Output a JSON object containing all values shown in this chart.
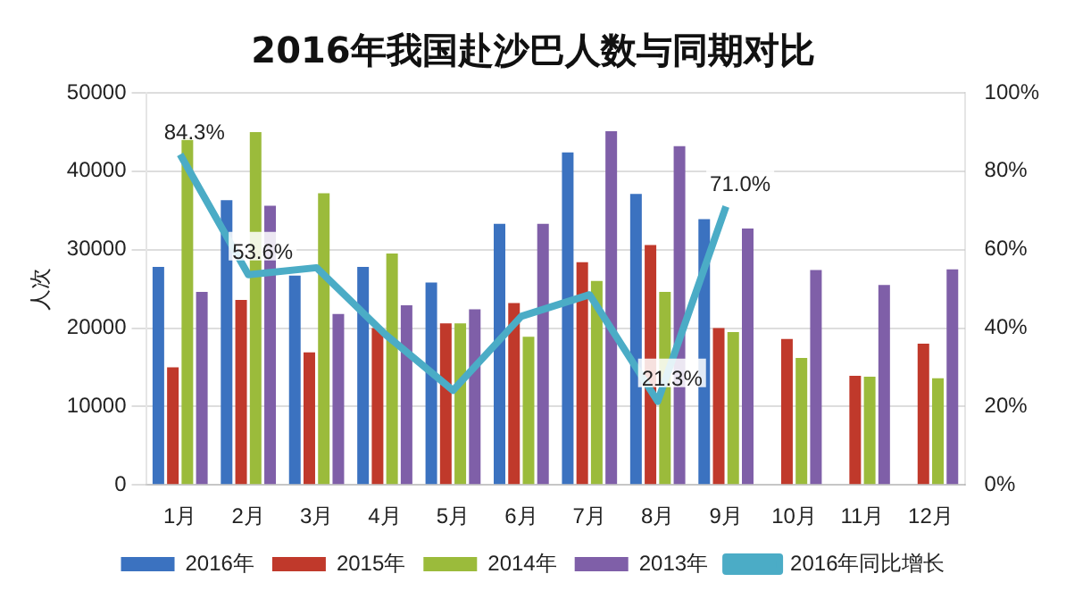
{
  "chart_data": {
    "type": "bar",
    "title": "2016年我国赴沙巴人数与同期对比",
    "ylabel": "人次",
    "categories": [
      "1月",
      "2月",
      "3月",
      "4月",
      "5月",
      "6月",
      "7月",
      "8月",
      "9月",
      "10月",
      "11月",
      "12月"
    ],
    "series": [
      {
        "name": "2016年",
        "color": "#3b72c0",
        "values": [
          27800,
          36300,
          26700,
          27800,
          25800,
          33300,
          42400,
          37100,
          33900,
          null,
          null,
          null
        ]
      },
      {
        "name": "2015年",
        "color": "#c0392b",
        "values": [
          15000,
          23600,
          16900,
          20000,
          20600,
          23200,
          28400,
          30600,
          20000,
          18600,
          13900,
          18000
        ]
      },
      {
        "name": "2014年",
        "color": "#9bbb3b",
        "values": [
          44200,
          45000,
          37200,
          29500,
          20600,
          18900,
          26000,
          24600,
          19500,
          16200,
          13800,
          13600
        ]
      },
      {
        "name": "2013年",
        "color": "#7f5fa8",
        "values": [
          24600,
          35600,
          21800,
          22900,
          22400,
          33300,
          45100,
          43200,
          32700,
          27400,
          25500,
          27500
        ]
      },
      {
        "name": "2016年同比增长",
        "type": "line",
        "axis": "y2",
        "color": "#4bacc6",
        "values": [
          84.3,
          53.6,
          55.4,
          38.5,
          24.1,
          43,
          48.5,
          21.3,
          71.0,
          null,
          null,
          null
        ],
        "value_labels": [
          "84.3%",
          "53.6%",
          null,
          null,
          null,
          null,
          null,
          "21.3%",
          "71.0%",
          null,
          null,
          null
        ]
      }
    ],
    "ylim": [
      0,
      50000
    ],
    "yticks": [
      0,
      10000,
      20000,
      30000,
      40000,
      50000
    ],
    "y2lim": [
      0,
      100
    ],
    "y2ticks": [
      {
        "value": 0,
        "label": "0%"
      },
      {
        "value": 20,
        "label": "20%"
      },
      {
        "value": 40,
        "label": "40%"
      },
      {
        "value": 60,
        "label": "60%"
      },
      {
        "value": 80,
        "label": "80%"
      },
      {
        "value": 100,
        "label": "100%"
      }
    ],
    "grid": "y",
    "legend": "bottom",
    "marker": "none"
  }
}
